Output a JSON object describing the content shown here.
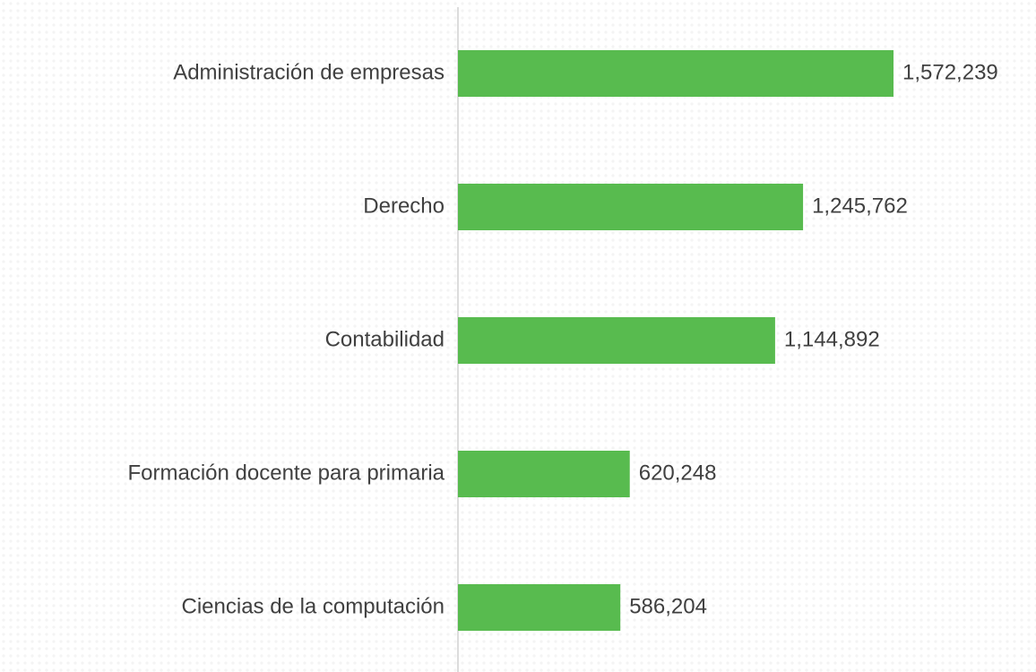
{
  "chart_data": {
    "type": "bar",
    "orientation": "horizontal",
    "categories": [
      "Administración de empresas",
      "Derecho",
      "Contabilidad",
      "Formación docente para primaria",
      "Ciencias de la computación"
    ],
    "values": [
      1572239,
      1245762,
      1144892,
      620248,
      586204
    ],
    "value_labels": [
      "1,572,239",
      "1,245,762",
      "1,144,892",
      "620,248",
      "586,204"
    ],
    "color": "#58bb4f"
  }
}
